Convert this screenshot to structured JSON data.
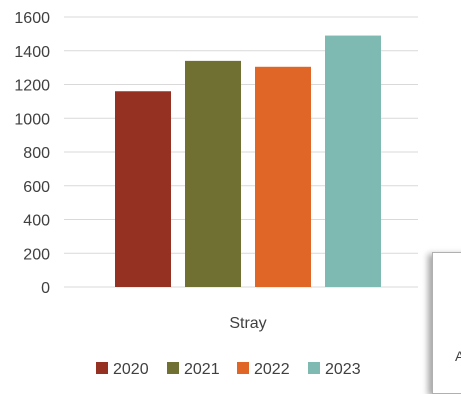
{
  "chart_data": {
    "type": "bar",
    "categories": [
      "Stray"
    ],
    "series": [
      {
        "name": "2020",
        "values": [
          1160
        ],
        "color": "#943123"
      },
      {
        "name": "2021",
        "values": [
          1340
        ],
        "color": "#6f7031"
      },
      {
        "name": "2022",
        "values": [
          1305
        ],
        "color": "#e06628"
      },
      {
        "name": "2023",
        "values": [
          1490
        ],
        "color": "#7fbab2"
      }
    ],
    "ylim": [
      0,
      1600
    ],
    "yticks": [
      "0",
      "200",
      "400",
      "600",
      "800",
      "1000",
      "1200",
      "1400",
      "1600"
    ],
    "grid": true,
    "legend": "bottom"
  },
  "popup": {
    "glyph": "A"
  }
}
